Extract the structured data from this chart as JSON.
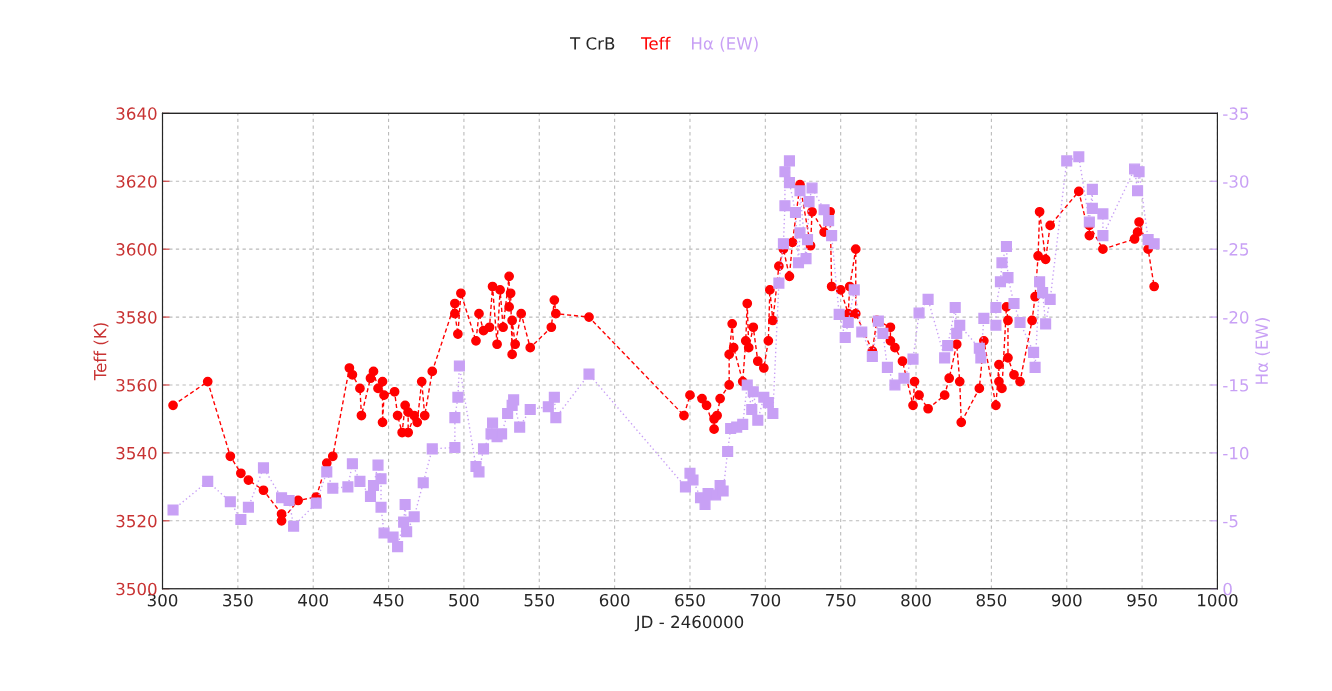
{
  "chart_data": {
    "type": "line",
    "title": "T CrB",
    "xlabel": "JD - 2460000",
    "ylabel": "Teff (K)",
    "y2label": "Hα (EW)",
    "xlim": [
      300,
      1000
    ],
    "xticks": [
      300,
      350,
      400,
      450,
      500,
      550,
      600,
      650,
      700,
      750,
      800,
      850,
      900,
      950,
      1000
    ],
    "ylim": [
      3500,
      3640
    ],
    "yticks": [
      3500,
      3520,
      3540,
      3560,
      3580,
      3600,
      3620,
      3640
    ],
    "y2lim": [
      0,
      -35
    ],
    "y2ticks": [
      0,
      -5,
      -10,
      -15,
      -20,
      -25,
      -30,
      -35
    ],
    "grid": true,
    "legend": "top",
    "series": [
      {
        "name": "Teff",
        "color": "#ff0000",
        "marker": "circle",
        "line_style": "dashed",
        "x": [
          307,
          330,
          345,
          352,
          357,
          367,
          379,
          379,
          390,
          402,
          409,
          413,
          424,
          426,
          431,
          432,
          438,
          440,
          443,
          446,
          446,
          447,
          454,
          456,
          459,
          461,
          463,
          463,
          467,
          469,
          472,
          474,
          479,
          494,
          494,
          496,
          498,
          508,
          510,
          513,
          517,
          519,
          522,
          524,
          526,
          530,
          530,
          531,
          532,
          532,
          534,
          538,
          544,
          558,
          560,
          561,
          583,
          646,
          650,
          658,
          661,
          666,
          666,
          668,
          670,
          676,
          676,
          678,
          679,
          685,
          687,
          688,
          689,
          692,
          695,
          699,
          702,
          703,
          705,
          709,
          712,
          716,
          718,
          723,
          730,
          731,
          739,
          743,
          744,
          750,
          755,
          756,
          760,
          760,
          771,
          774,
          783,
          783,
          786,
          791,
          798,
          799,
          802,
          808,
          819,
          822,
          827,
          829,
          830,
          842,
          845,
          853,
          855,
          855,
          857,
          860,
          861,
          861,
          865,
          869,
          877,
          879,
          881,
          882,
          886,
          889,
          908,
          915,
          915,
          924,
          945,
          947,
          948,
          954,
          958
        ],
        "values": [
          3554,
          3561,
          3539,
          3534,
          3532,
          3529,
          3522,
          3520,
          3526,
          3527,
          3537,
          3539,
          3565,
          3563,
          3559,
          3551,
          3562,
          3564,
          3559,
          3561,
          3549,
          3557,
          3558,
          3551,
          3546,
          3554,
          3552,
          3546,
          3551,
          3549,
          3561,
          3551,
          3564,
          3584,
          3581,
          3575,
          3587,
          3573,
          3581,
          3576,
          3577,
          3589,
          3572,
          3588,
          3577,
          3592,
          3583,
          3587,
          3569,
          3579,
          3572,
          3581,
          3571,
          3577,
          3585,
          3581,
          3580,
          3551,
          3557,
          3556,
          3554,
          3547,
          3550,
          3551,
          3556,
          3560,
          3569,
          3578,
          3571,
          3561,
          3573,
          3584,
          3571,
          3577,
          3567,
          3565,
          3573,
          3588,
          3579,
          3595,
          3600,
          3592,
          3602,
          3619,
          3601,
          3611,
          3605,
          3611,
          3589,
          3588,
          3581,
          3589,
          3600,
          3581,
          3570,
          3579,
          3577,
          3573,
          3571,
          3567,
          3554,
          3561,
          3557,
          3553,
          3557,
          3562,
          3572,
          3561,
          3549,
          3559,
          3573,
          3554,
          3566,
          3561,
          3559,
          3583,
          3579,
          3568,
          3563,
          3561,
          3579,
          3586,
          3598,
          3611,
          3597,
          3607,
          3617,
          3604,
          3607,
          3600,
          3603,
          3605,
          3608,
          3600,
          3589
        ]
      },
      {
        "name": "Hα (EW)",
        "color": "#c8a0f5",
        "marker": "square",
        "line_style": "dotted",
        "axis": "y2",
        "x": [
          307,
          330,
          345,
          352,
          357,
          367,
          379,
          384,
          387,
          402,
          409,
          413,
          423,
          426,
          431,
          438,
          440,
          443,
          445,
          445,
          447,
          453,
          456,
          460,
          461,
          462,
          467,
          473,
          479,
          494,
          494,
          496,
          497,
          508,
          510,
          513,
          518,
          519,
          522,
          525,
          529,
          532,
          533,
          537,
          544,
          556,
          560,
          561,
          583,
          647,
          650,
          652,
          657,
          660,
          662,
          667,
          670,
          672,
          675,
          677,
          681,
          685,
          688,
          691,
          692,
          695,
          699,
          702,
          705,
          709,
          712,
          713,
          713,
          716,
          716,
          720,
          722,
          723,
          723,
          727,
          728,
          729,
          731,
          739,
          742,
          744,
          749,
          753,
          755,
          759,
          764,
          771,
          775,
          778,
          781,
          786,
          792,
          798,
          802,
          808,
          819,
          821,
          826,
          827,
          829,
          842,
          843,
          845,
          853,
          853,
          856,
          857,
          860,
          861,
          865,
          869,
          878,
          879,
          882,
          884,
          886,
          889,
          900,
          908,
          915,
          917,
          917,
          924,
          924,
          945,
          947,
          948,
          954,
          958
        ],
        "values": [
          -5.8,
          -7.9,
          -6.4,
          -5.1,
          -6.0,
          -8.9,
          -6.7,
          -6.5,
          -4.6,
          -6.3,
          -8.6,
          -7.4,
          -7.5,
          -9.2,
          -7.9,
          -6.8,
          -7.6,
          -9.1,
          -8.1,
          -6.0,
          -4.1,
          -3.8,
          -3.1,
          -4.9,
          -6.2,
          -4.2,
          -5.3,
          -7.8,
          -10.3,
          -10.4,
          -12.6,
          -14.1,
          -16.4,
          -9.0,
          -8.6,
          -10.3,
          -11.4,
          -12.2,
          -11.2,
          -11.4,
          -12.9,
          -13.5,
          -13.9,
          -11.9,
          -13.2,
          -13.4,
          -14.1,
          -12.6,
          -15.8,
          -7.5,
          -8.5,
          -8.0,
          -6.7,
          -6.2,
          -7.0,
          -6.9,
          -7.6,
          -7.2,
          -10.1,
          -11.8,
          -11.9,
          -12.1,
          -15.0,
          -13.2,
          -14.5,
          -12.4,
          -14.1,
          -13.7,
          -12.9,
          -22.5,
          -25.4,
          -28.2,
          -30.7,
          -31.5,
          -29.9,
          -27.7,
          -24.0,
          -26.2,
          -29.3,
          -24.3,
          -25.7,
          -28.5,
          -29.5,
          -27.9,
          -27.1,
          -26.0,
          -20.2,
          -18.5,
          -19.6,
          -22.0,
          -18.9,
          -17.1,
          -19.7,
          -18.8,
          -16.3,
          -15.0,
          -15.5,
          -16.9,
          -20.3,
          -21.3,
          -17.0,
          -17.9,
          -20.7,
          -18.8,
          -19.4,
          -17.7,
          -17.0,
          -19.9,
          -19.4,
          -20.7,
          -22.6,
          -24.0,
          -25.2,
          -22.9,
          -21.0,
          -19.6,
          -17.4,
          -16.3,
          -22.6,
          -21.8,
          -19.5,
          -21.3,
          -31.5,
          -31.8,
          -27.0,
          -29.4,
          -28.0,
          -27.6,
          -26.0,
          -30.9,
          -29.3,
          -30.7,
          -25.7,
          -25.4
        ]
      }
    ]
  }
}
